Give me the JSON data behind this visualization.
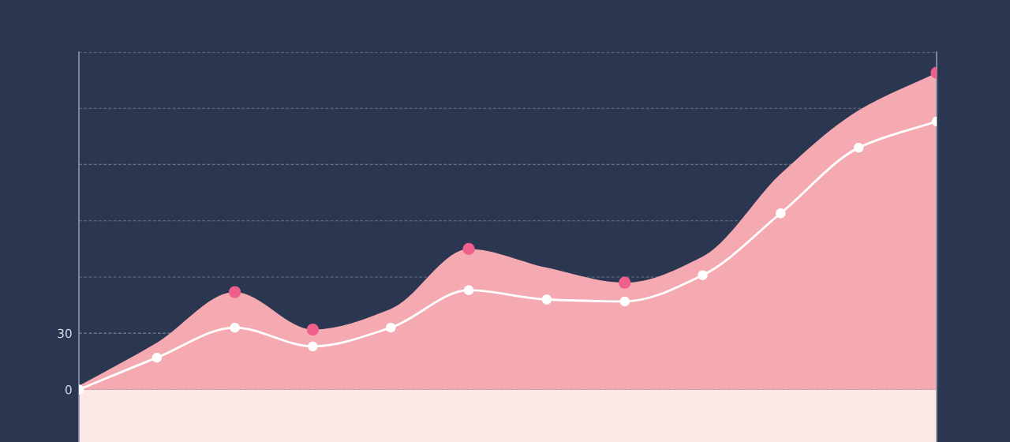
{
  "chart_data": {
    "type": "area",
    "categories": [
      null,
      null,
      null,
      null,
      null,
      null,
      null,
      null,
      null,
      null,
      null,
      null
    ],
    "ylim": [
      -28,
      180
    ],
    "yticks": [
      0,
      30,
      {
        "value": 60,
        "label": null
      },
      {
        "value": 90,
        "label": null
      },
      {
        "value": 120,
        "label": null
      },
      {
        "value": 150,
        "label": null
      },
      {
        "value": 180,
        "label": null
      }
    ],
    "grid": "y",
    "tick_labels": "y",
    "bands": [
      {
        "axis": "y",
        "from": -28,
        "to": 0,
        "color": "#fbe8e6"
      }
    ],
    "series": [
      {
        "type": "scatter",
        "marker": "circle",
        "color": "#ee5f8b",
        "values": [
          null,
          null,
          52,
          32,
          null,
          75,
          null,
          57,
          null,
          null,
          null,
          169
        ]
      },
      {
        "color": "#f5aab2",
        "values": [
          2,
          25,
          52,
          32,
          43,
          75,
          65,
          57,
          71,
          115,
          149,
          169
        ]
      },
      {
        "type": "line",
        "marker": "circle",
        "color": "#ffffff",
        "values": [
          0,
          17,
          33,
          23,
          33,
          53,
          48,
          47,
          61,
          94,
          129,
          143
        ]
      }
    ]
  }
}
